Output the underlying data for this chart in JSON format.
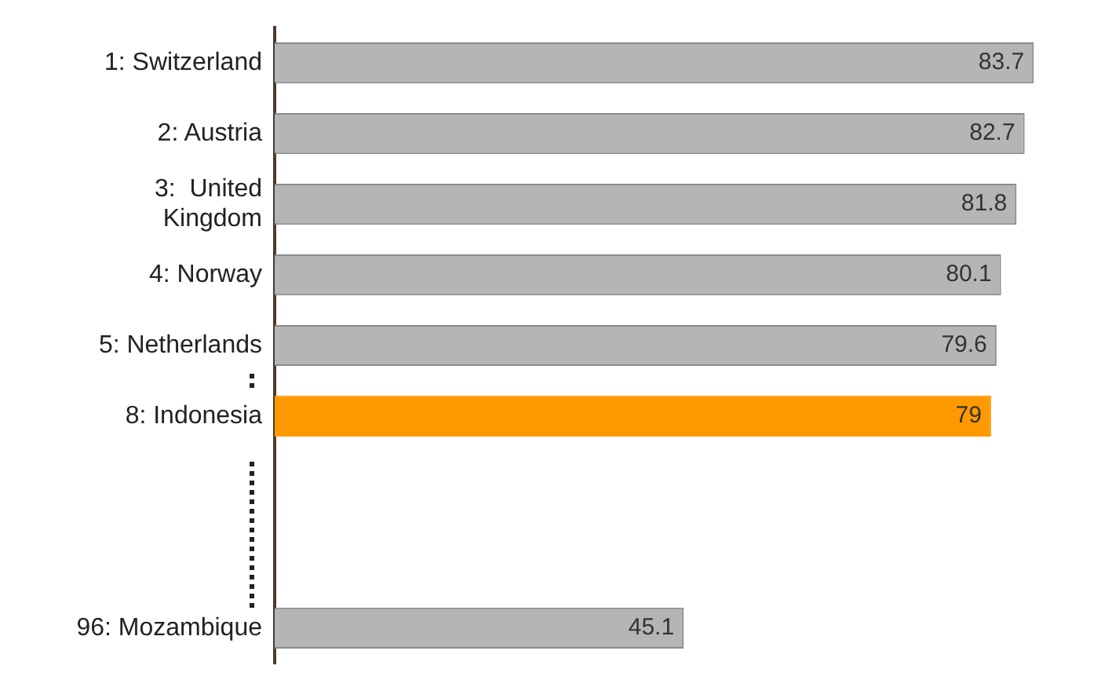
{
  "chart_data": {
    "type": "bar",
    "orientation": "horizontal",
    "categories": [
      "1: Switzerland",
      "2: Austria",
      "3:  United Kingdom",
      "4: Norway",
      "5: Netherlands",
      "8: Indonesia",
      null,
      null,
      "96: Mozambique"
    ],
    "values": [
      83.7,
      82.7,
      81.8,
      80.1,
      79.6,
      79,
      null,
      null,
      45.1
    ],
    "colors": [
      "#b5b5b5",
      "#b5b5b5",
      "#b5b5b5",
      "#b5b5b5",
      "#b5b5b5",
      "#ff9900",
      null,
      null,
      "#b5b5b5"
    ],
    "data_labels": true,
    "tick_labels": "y"
  }
}
